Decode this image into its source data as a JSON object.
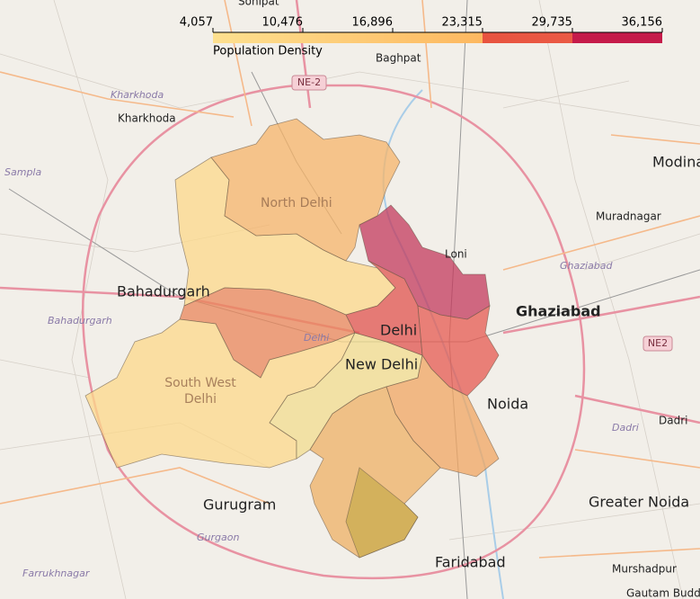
{
  "legend": {
    "title": "Population Density",
    "range": [
      4057,
      36156
    ],
    "ticks": [
      {
        "value": 4057,
        "label": "4,057"
      },
      {
        "value": 10476,
        "label": "10,476"
      },
      {
        "value": 16896,
        "label": "16,896"
      },
      {
        "value": 23315,
        "label": "23,315"
      },
      {
        "value": 29735,
        "label": "29,735"
      },
      {
        "value": 36156,
        "label": "36,156"
      }
    ]
  },
  "places": {
    "sonipat": "Sonipat",
    "baghpat": "Baghpat",
    "ne_2": "NE-2",
    "kharkhoda_region": "Kharkhoda",
    "kharkhoda": "Kharkhoda",
    "sampla": "Sampla",
    "modinagar": "Modina",
    "north_delhi": "North Delhi",
    "muradnagar": "Muradnagar",
    "loni": "Loni",
    "ghaziabad_region": "Ghaziabad",
    "bahadurgarh": "Bahadurgarh",
    "ghaziabad": "Ghaziabad",
    "bahadurgarh_region": "Bahadurgarh",
    "delhi_region": "Delhi",
    "delhi": "Delhi",
    "ne2": "NE2",
    "new_delhi": "New Delhi",
    "south_west_delhi_1": "South West",
    "south_west_delhi_2": "Delhi",
    "noida": "Noida",
    "dadri_region": "Dadri",
    "dadri": "Dadri",
    "gurugram": "Gurugram",
    "greater_noida": "Greater Noida",
    "gurgaon": "Gurgaon",
    "farrukhnagar": "Farrukhnagar",
    "faridabad": "Faridabad",
    "murshadpur": "Murshadpur",
    "gautam_budd": "Gautam Budd"
  }
}
